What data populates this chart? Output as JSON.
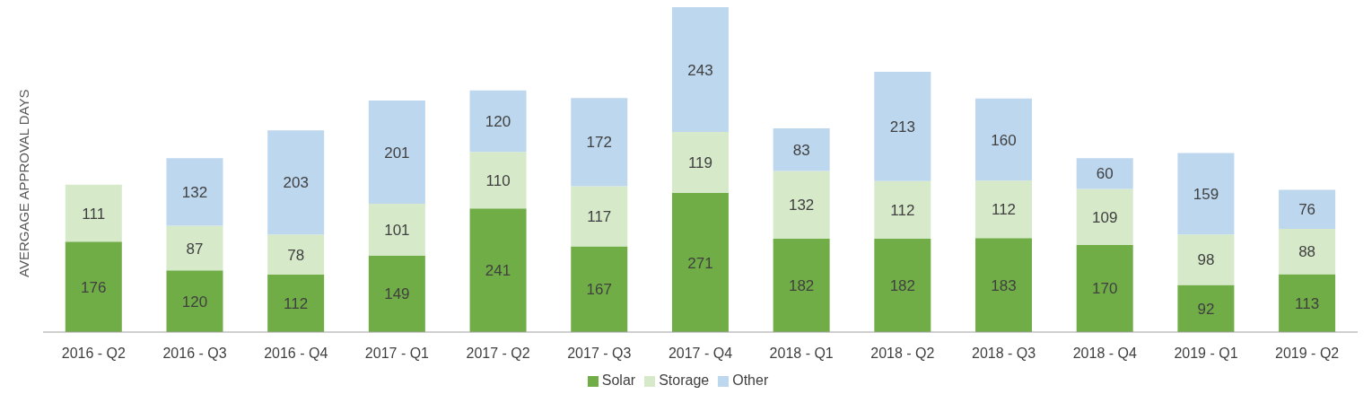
{
  "chart_data": {
    "type": "bar",
    "stacked": true,
    "ylabel": "AVERGAGE APPROVAL DAYS",
    "categories": [
      "2016 - Q2",
      "2016 - Q3",
      "2016 - Q4",
      "2017 - Q1",
      "2017 - Q2",
      "2017 - Q3",
      "2017 - Q4",
      "2018 - Q1",
      "2018 - Q2",
      "2018 - Q3",
      "2018 - Q4",
      "2019 - Q1",
      "2019 - Q2"
    ],
    "series": [
      {
        "name": "Solar",
        "color": "#70ad47",
        "values": [
          176,
          120,
          112,
          149,
          241,
          167,
          271,
          182,
          182,
          183,
          170,
          92,
          113
        ]
      },
      {
        "name": "Storage",
        "color": "#d6e9c9",
        "values": [
          111,
          87,
          78,
          101,
          110,
          117,
          119,
          132,
          112,
          112,
          109,
          98,
          88
        ]
      },
      {
        "name": "Other",
        "color": "#bdd7ee",
        "values": [
          null,
          132,
          203,
          201,
          120,
          172,
          243,
          83,
          213,
          160,
          60,
          159,
          76
        ]
      }
    ],
    "data_labels": true,
    "tick_labels": "x",
    "grid": false,
    "legend": "bottom"
  }
}
